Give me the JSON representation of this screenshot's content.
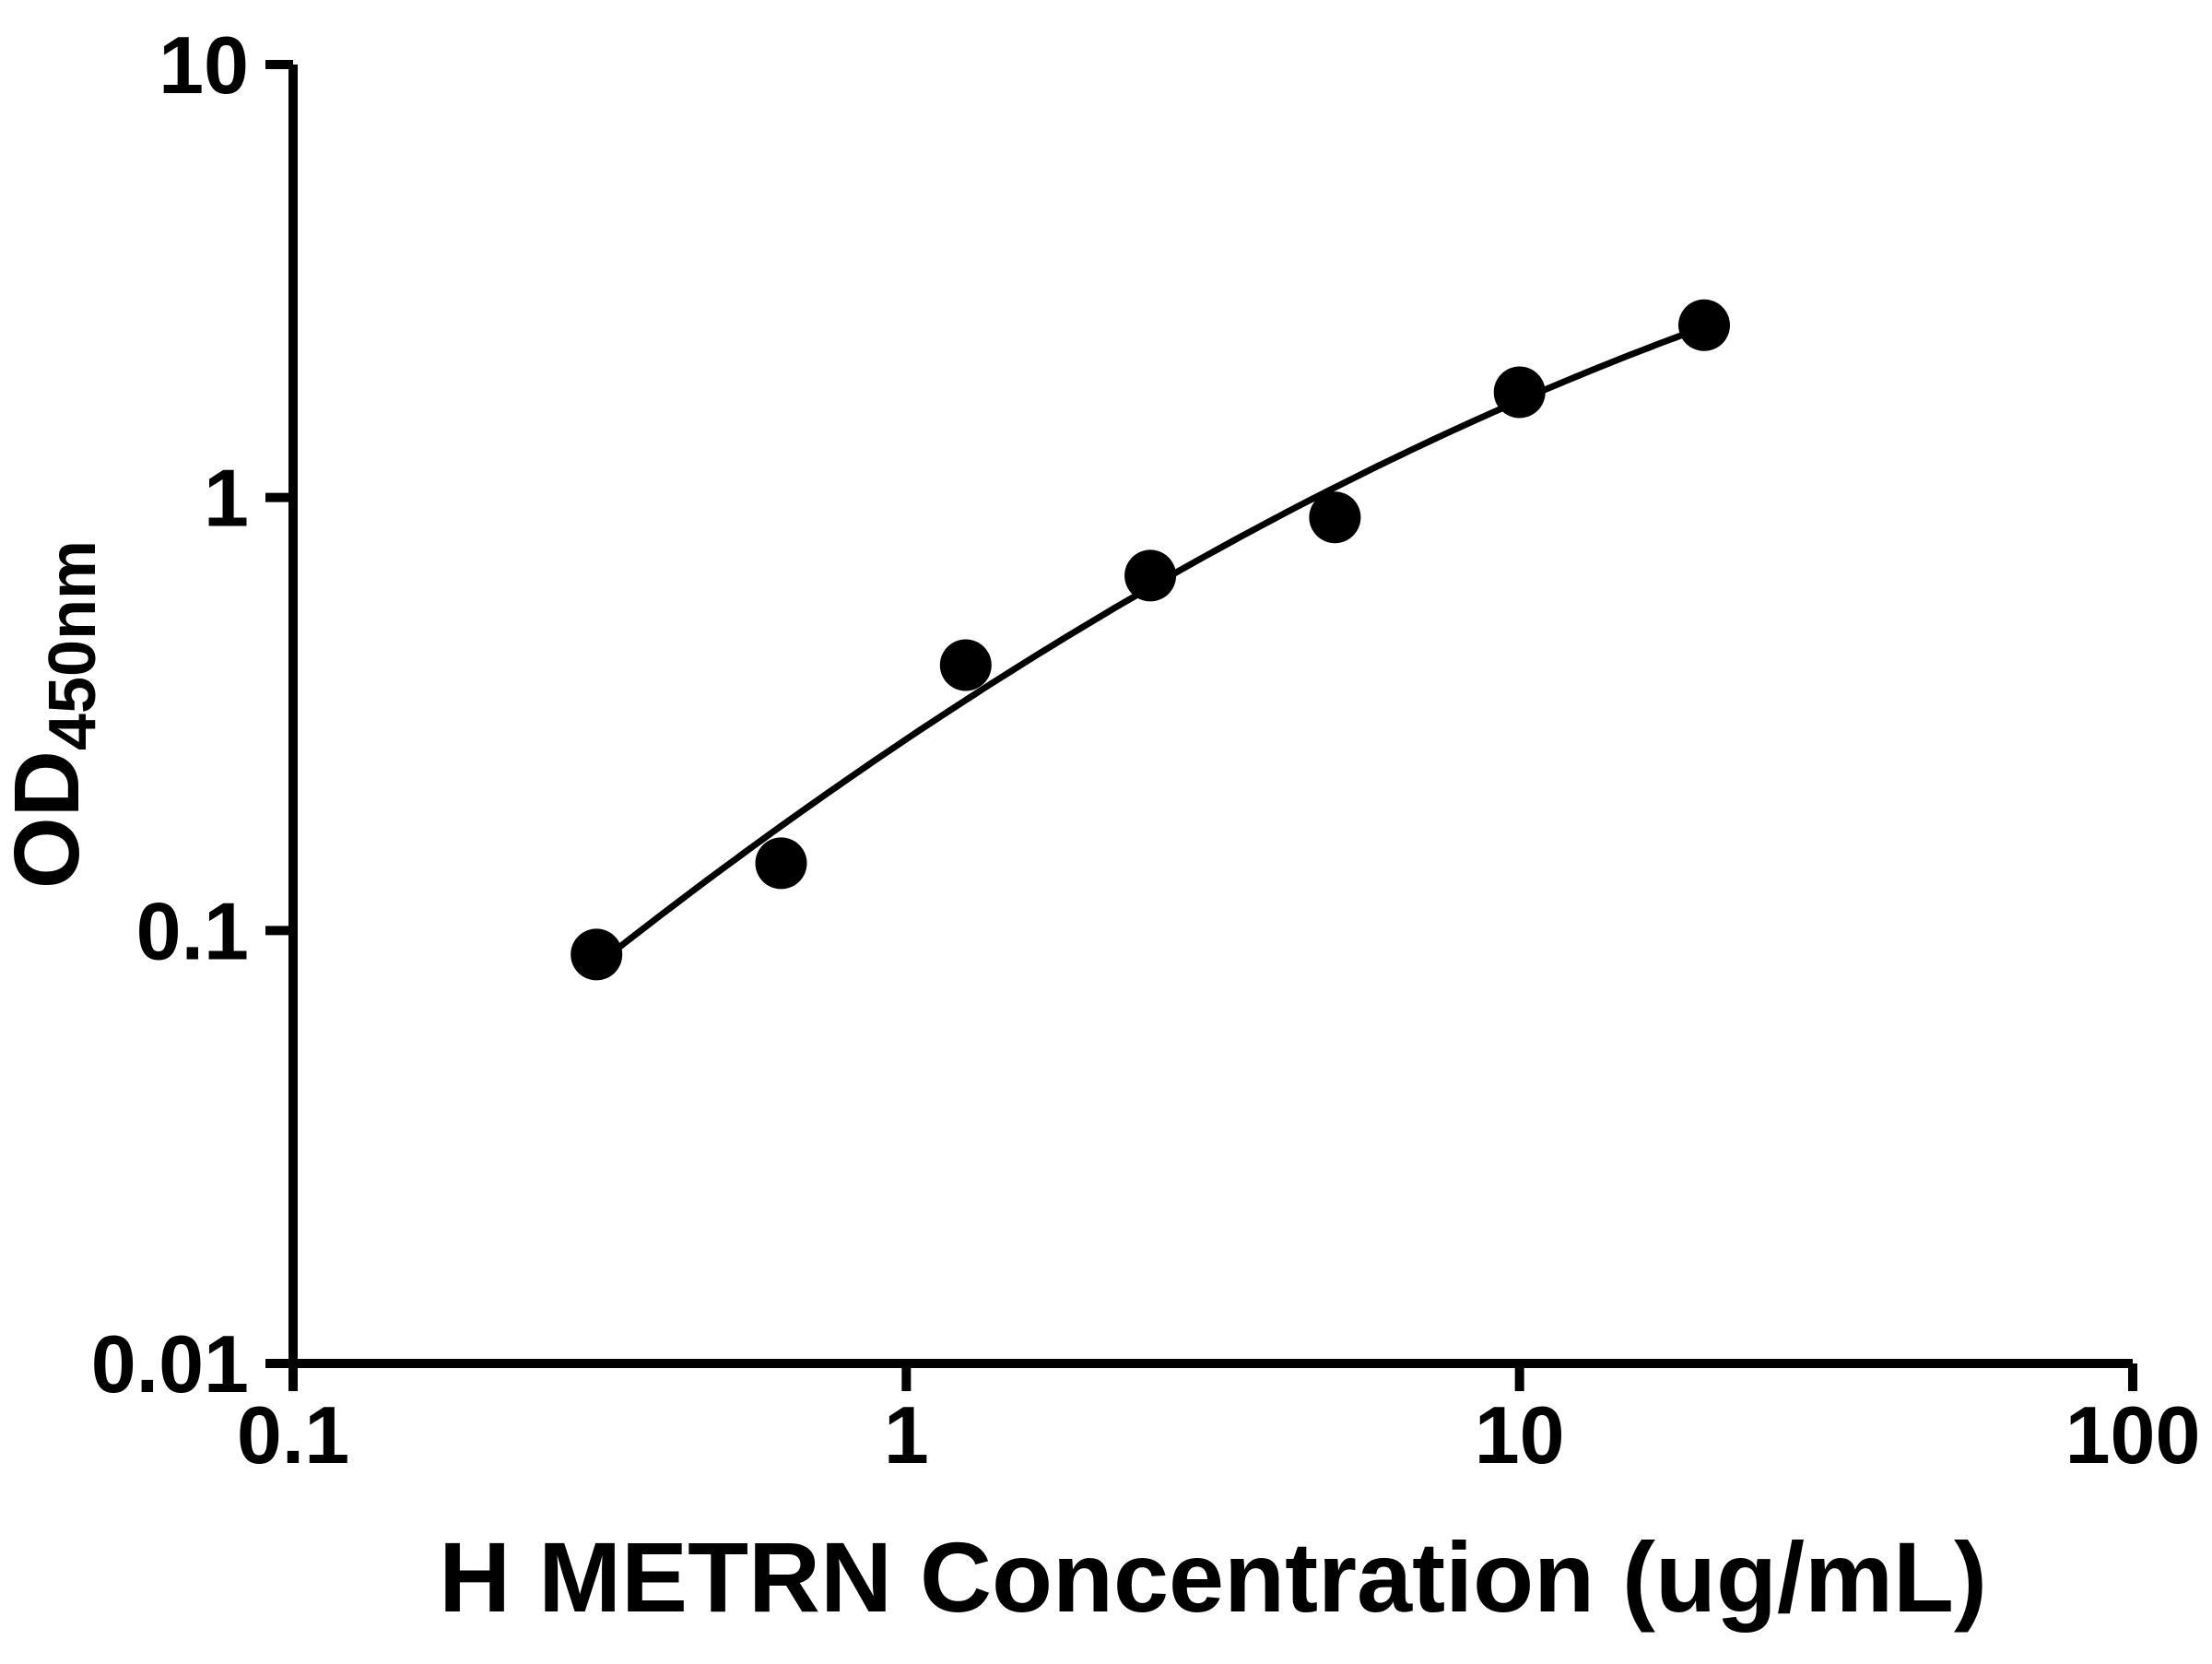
{
  "chart_data": {
    "type": "scatter",
    "title": "",
    "xlabel": "H METRN Concentration (ug/mL)",
    "ylabel_main": "OD",
    "ylabel_sub": "450nm",
    "x_scale": "log",
    "y_scale": "log",
    "xlim": [
      0.1,
      100
    ],
    "ylim": [
      0.01,
      10
    ],
    "x_ticks": {
      "values": [
        0.1,
        1,
        10,
        100
      ],
      "labels": [
        "0.1",
        "1",
        "10",
        "100"
      ]
    },
    "y_ticks": {
      "values": [
        0.01,
        0.1,
        1,
        10
      ],
      "labels": [
        "0.01",
        "0.1",
        "1",
        "10"
      ]
    },
    "x": [
      0.3125,
      0.625,
      1.25,
      2.5,
      5,
      10,
      20
    ],
    "y": [
      0.088,
      0.143,
      0.41,
      0.66,
      0.9,
      1.75,
      2.5
    ],
    "fit": "quadratic fit in log-log space through data points",
    "marker_color": "#000000",
    "line_color": "#000000",
    "axis_color": "#000000",
    "grid": "off",
    "legend": "none"
  }
}
